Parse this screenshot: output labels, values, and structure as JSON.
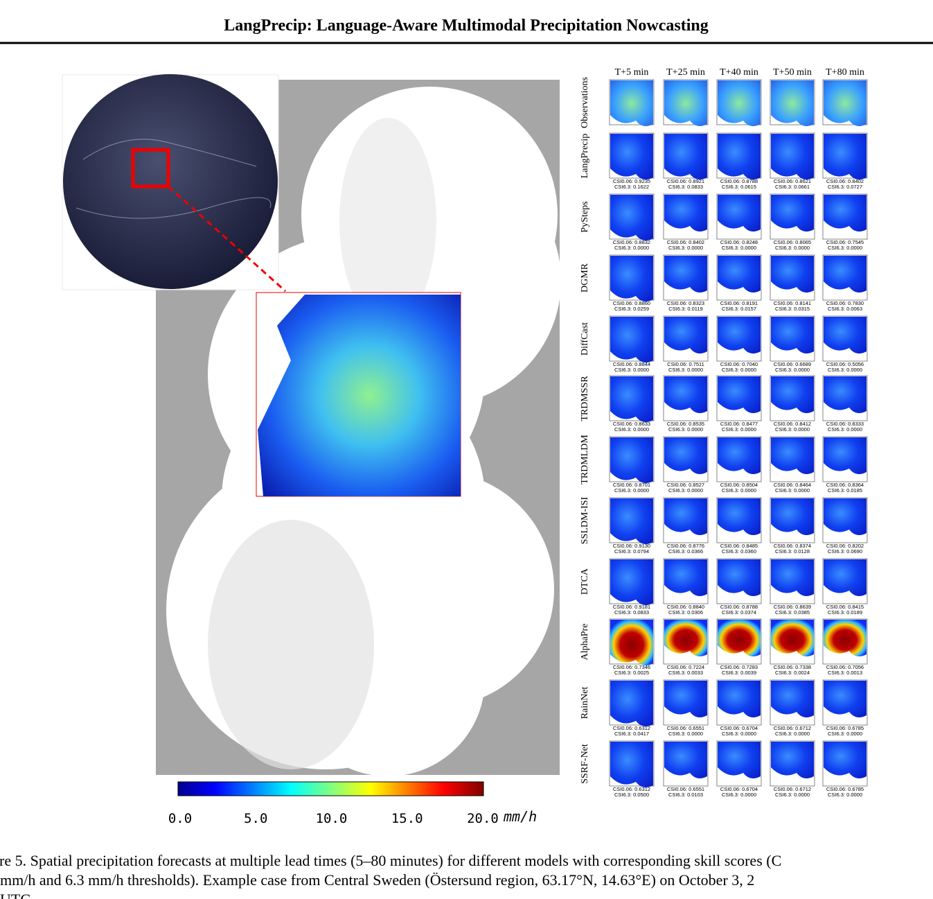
{
  "header": {
    "title": "LangPrecip: Language-Aware Multimodal Precipitation Nowcasting"
  },
  "colorbar": {
    "ticks": [
      "0.0",
      "5.0",
      "10.0",
      "15.0",
      "20.0"
    ],
    "unit": "mm/h"
  },
  "grid": {
    "columns": [
      "T+5 min",
      "T+25 min",
      "T+40 min",
      "T+50 min",
      "T+80 min"
    ],
    "rows": [
      {
        "label": "Observations",
        "scores": []
      },
      {
        "label": "LangPrecip",
        "scores": [
          [
            "CSI0.06: 0.9235",
            "CSI6.3: 0.1622"
          ],
          [
            "CSI0.06: 0.8921",
            "CSI6.3: 0.0833"
          ],
          [
            "CSI0.06: 0.8788",
            "CSI6.3: 0.0615"
          ],
          [
            "CSI0.06: 0.8621",
            "CSI6.3: 0.0661"
          ],
          [
            "CSI0.06: 0.8402",
            "CSI6.3: 0.0727"
          ]
        ]
      },
      {
        "label": "PySteps",
        "scores": [
          [
            "CSI0.06: 0.8832",
            "CSI6.3: 0.0000"
          ],
          [
            "CSI0.06: 0.8402",
            "CSI6.3: 0.0000"
          ],
          [
            "CSI0.06: 0.8248",
            "CSI6.3: 0.0000"
          ],
          [
            "CSI0.06: 0.8065",
            "CSI6.3: 0.0000"
          ],
          [
            "CSI0.06: 0.7545",
            "CSI6.3: 0.0000"
          ]
        ]
      },
      {
        "label": "DGMR",
        "scores": [
          [
            "CSI0.06: 0.8860",
            "CSI6.3: 0.0259"
          ],
          [
            "CSI0.06: 0.8323",
            "CSI6.3: 0.0119"
          ],
          [
            "CSI0.06: 0.8191",
            "CSI6.3: 0.0157"
          ],
          [
            "CSI0.06: 0.8141",
            "CSI6.3: 0.0315"
          ],
          [
            "CSI0.06: 0.7830",
            "CSI6.3: 0.0063"
          ]
        ]
      },
      {
        "label": "DiffCast",
        "scores": [
          [
            "CSI0.06: 0.8844",
            "CSI6.3: 0.0000"
          ],
          [
            "CSI0.06: 0.7511",
            "CSI6.3: 0.0000"
          ],
          [
            "CSI0.06: 0.7040",
            "CSI6.3: 0.0000"
          ],
          [
            "CSI0.06: 0.6689",
            "CSI6.3: 0.0000"
          ],
          [
            "CSI0.06: 0.5056",
            "CSI6.3: 0.0000"
          ]
        ]
      },
      {
        "label": "TRDMSSR",
        "scores": [
          [
            "CSI0.06: 0.8633",
            "CSI6.3: 0.0000"
          ],
          [
            "CSI0.06: 0.8535",
            "CSI6.3: 0.0000"
          ],
          [
            "CSI0.06: 0.8477",
            "CSI6.3: 0.0000"
          ],
          [
            "CSI0.06: 0.8412",
            "CSI6.3: 0.0000"
          ],
          [
            "CSI0.06: 0.8333",
            "CSI6.3: 0.0000"
          ]
        ]
      },
      {
        "label": "TRDMLDM",
        "scores": [
          [
            "CSI0.06: 0.8701",
            "CSI6.3: 0.0000"
          ],
          [
            "CSI0.06: 0.8527",
            "CSI6.3: 0.0000"
          ],
          [
            "CSI0.06: 0.8504",
            "CSI6.3: 0.0000"
          ],
          [
            "CSI0.06: 0.8464",
            "CSI6.3: 0.0000"
          ],
          [
            "CSI0.06: 0.8364",
            "CSI6.3: 0.0185"
          ]
        ]
      },
      {
        "label": "SSLDM-ISI",
        "scores": [
          [
            "CSI0.06: 0.9130",
            "CSI6.3: 0.0794"
          ],
          [
            "CSI0.06: 0.8776",
            "CSI6.3: 0.0366"
          ],
          [
            "CSI0.06: 0.8485",
            "CSI6.3: 0.0360"
          ],
          [
            "CSI0.06: 0.8374",
            "CSI6.3: 0.0128"
          ],
          [
            "CSI0.06: 0.8202",
            "CSI6.3: 0.0690"
          ]
        ]
      },
      {
        "label": "DTCA",
        "scores": [
          [
            "CSI0.06: 0.9181",
            "CSI6.3: 0.0833"
          ],
          [
            "CSI0.06: 0.8840",
            "CSI6.3: 0.0306"
          ],
          [
            "CSI0.06: 0.8788",
            "CSI6.3: 0.0374"
          ],
          [
            "CSI0.06: 0.8639",
            "CSI6.3: 0.0385"
          ],
          [
            "CSI0.06: 0.8415",
            "CSI6.3: 0.0189"
          ]
        ]
      },
      {
        "label": "AlphaPre",
        "scores": [
          [
            "CSI0.06: 0.7346",
            "CSI6.3: 0.0025"
          ],
          [
            "CSI0.06: 0.7224",
            "CSI6.3: 0.0033"
          ],
          [
            "CSI0.06: 0.7283",
            "CSI6.3: 0.0039"
          ],
          [
            "CSI0.06: 0.7338",
            "CSI6.3: 0.0024"
          ],
          [
            "CSI0.06: 0.7056",
            "CSI6.3: 0.0013"
          ]
        ]
      },
      {
        "label": "RainNet",
        "scores": [
          [
            "CSI0.06: 0.6312",
            "CSI6.3: 0.0417"
          ],
          [
            "CSI0.06: 0.6551",
            "CSI6.3: 0.0000"
          ],
          [
            "CSI0.06: 0.6704",
            "CSI6.3: 0.0000"
          ],
          [
            "CSI0.06: 0.6712",
            "CSI6.3: 0.0000"
          ],
          [
            "CSI0.06: 0.6785",
            "CSI6.3: 0.0000"
          ]
        ]
      },
      {
        "label": "SSRF-Net",
        "scores": [
          [
            "CSI0.06: 0.6312",
            "CSI6.3: 0.0500"
          ],
          [
            "CSI0.06: 0.6551",
            "CSI6.3: 0.0103"
          ],
          [
            "CSI0.06: 0.6704",
            "CSI6.3: 0.0000"
          ],
          [
            "CSI0.06: 0.6712",
            "CSI6.3: 0.0000"
          ],
          [
            "CSI0.06: 0.6785",
            "CSI6.3: 0.0000"
          ]
        ]
      }
    ]
  },
  "caption": {
    "lines": [
      "re 5. Spatial precipitation forecasts at multiple lead times (5–80 minutes) for different models with corresponding skill scores (C",
      "mm/h and 6.3 mm/h thresholds). Example case from Central Sweden (Östersund region, 63.17°N, 14.63°E) on October 3, 2",
      "UTC"
    ]
  }
}
